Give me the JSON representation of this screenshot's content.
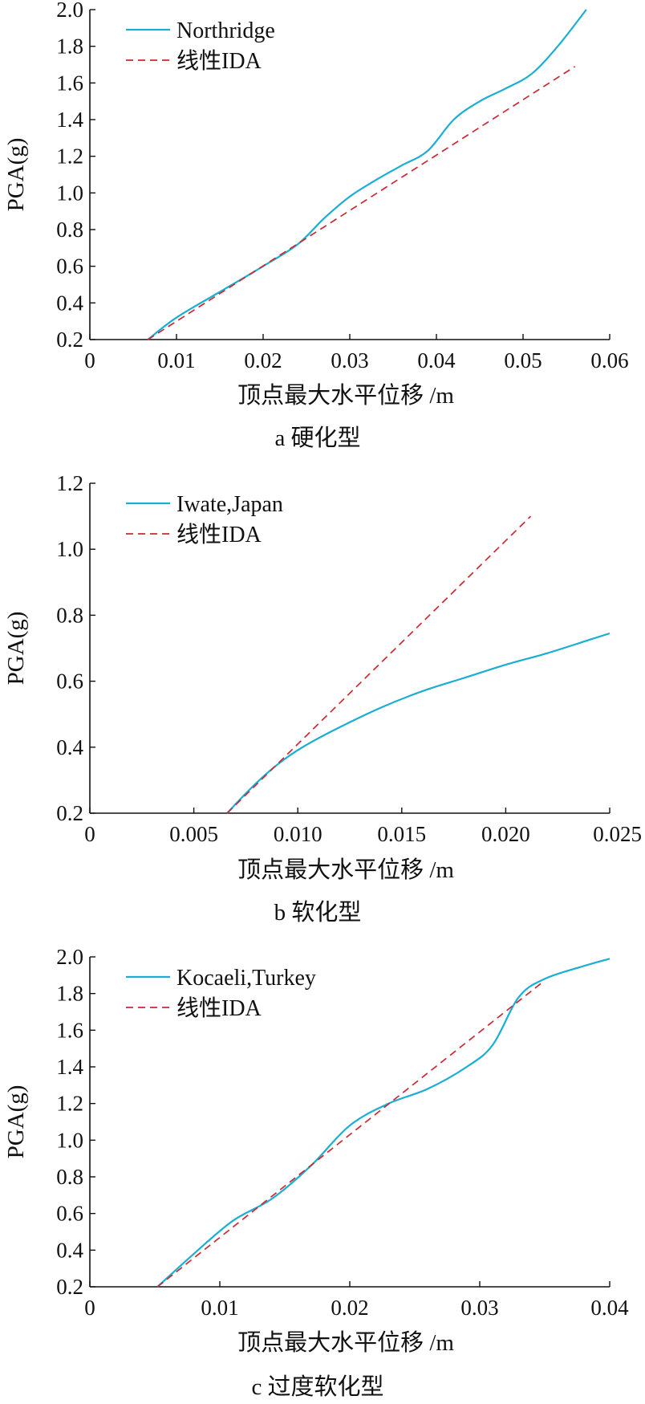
{
  "colors": {
    "record_line": "#1aaed4",
    "linear_ida_line": "#cc2a33",
    "axis": "#111111"
  },
  "chart_data": [
    {
      "id": "a",
      "type": "line",
      "caption": "a  硬化型",
      "xlabel": "顶点最大水平位移 /m",
      "ylabel": "PGA(g)",
      "xlim": [
        0,
        0.06
      ],
      "ylim": [
        0.2,
        2.0
      ],
      "xticks": [
        0,
        0.01,
        0.02,
        0.03,
        0.04,
        0.05,
        0.06
      ],
      "xtick_labels": [
        "0",
        "0.01",
        "0.02",
        "0.03",
        "0.04",
        "0.05",
        "0.06"
      ],
      "yticks": [
        0.2,
        0.4,
        0.6,
        0.8,
        1.0,
        1.2,
        1.4,
        1.6,
        1.8,
        2.0
      ],
      "ytick_labels": [
        "0.2",
        "0.4",
        "0.6",
        "0.8",
        "1.0",
        "1.2",
        "1.4",
        "1.6",
        "1.8",
        "2.0"
      ],
      "legend_position": "top-left",
      "series": [
        {
          "name": "Northridge",
          "style": "solid",
          "x": [
            0.0067,
            0.01,
            0.015,
            0.02,
            0.024,
            0.027,
            0.03,
            0.033,
            0.036,
            0.039,
            0.042,
            0.045,
            0.048,
            0.051,
            0.054,
            0.0573
          ],
          "y": [
            0.2,
            0.32,
            0.46,
            0.6,
            0.72,
            0.86,
            0.98,
            1.07,
            1.15,
            1.23,
            1.4,
            1.5,
            1.57,
            1.65,
            1.8,
            2.0
          ]
        },
        {
          "name": "线性IDA",
          "style": "dashed",
          "x": [
            0.0067,
            0.056
          ],
          "y": [
            0.2,
            1.69
          ]
        }
      ]
    },
    {
      "id": "b",
      "type": "line",
      "caption": "b  软化型",
      "xlabel": "顶点最大水平位移 /m",
      "ylabel": "PGA(g)",
      "xlim": [
        0,
        0.025
      ],
      "ylim": [
        0.2,
        1.2
      ],
      "xticks": [
        0,
        0.005,
        0.01,
        0.015,
        0.02,
        0.025
      ],
      "xtick_labels": [
        "0",
        "0.005",
        "0.010",
        "0.015",
        "0.020",
        "0.025"
      ],
      "yticks": [
        0.2,
        0.4,
        0.6,
        0.8,
        1.0,
        1.2
      ],
      "ytick_labels": [
        "0.2",
        "0.4",
        "0.6",
        "0.8",
        "1.0",
        "1.2"
      ],
      "legend_position": "top-left",
      "series": [
        {
          "name": "Iwate,Japan",
          "style": "solid",
          "x": [
            0.0066,
            0.0075,
            0.0085,
            0.0095,
            0.0105,
            0.012,
            0.014,
            0.016,
            0.018,
            0.02,
            0.022,
            0.024,
            0.025
          ],
          "y": [
            0.2,
            0.26,
            0.32,
            0.37,
            0.41,
            0.46,
            0.52,
            0.57,
            0.61,
            0.65,
            0.685,
            0.725,
            0.745
          ]
        },
        {
          "name": "线性IDA",
          "style": "dashed",
          "x": [
            0.0066,
            0.0212
          ],
          "y": [
            0.2,
            1.1
          ]
        }
      ]
    },
    {
      "id": "c",
      "type": "line",
      "caption": "c  过度软化型",
      "xlabel": "顶点最大水平位移 /m",
      "ylabel": "PGA(g)",
      "xlim": [
        0,
        0.04
      ],
      "ylim": [
        0.2,
        2.0
      ],
      "xticks": [
        0,
        0.01,
        0.02,
        0.03,
        0.04
      ],
      "xtick_labels": [
        "0",
        "0.01",
        "0.02",
        "0.03",
        "0.04"
      ],
      "yticks": [
        0.2,
        0.4,
        0.6,
        0.8,
        1.0,
        1.2,
        1.4,
        1.6,
        1.8,
        2.0
      ],
      "ytick_labels": [
        "0.2",
        "0.4",
        "0.6",
        "0.8",
        "1.0",
        "1.2",
        "1.4",
        "1.6",
        "1.8",
        "2.0"
      ],
      "legend_position": "top-left",
      "series": [
        {
          "name": "Kocaeli,Turkey",
          "style": "solid",
          "x": [
            0.0052,
            0.008,
            0.011,
            0.014,
            0.017,
            0.02,
            0.023,
            0.026,
            0.029,
            0.031,
            0.033,
            0.035,
            0.038,
            0.04
          ],
          "y": [
            0.2,
            0.38,
            0.56,
            0.68,
            0.86,
            1.08,
            1.2,
            1.28,
            1.4,
            1.52,
            1.78,
            1.88,
            1.95,
            1.99
          ]
        },
        {
          "name": "线性IDA",
          "style": "dashed",
          "x": [
            0.0052,
            0.0348
          ],
          "y": [
            0.2,
            1.86
          ]
        }
      ]
    }
  ]
}
